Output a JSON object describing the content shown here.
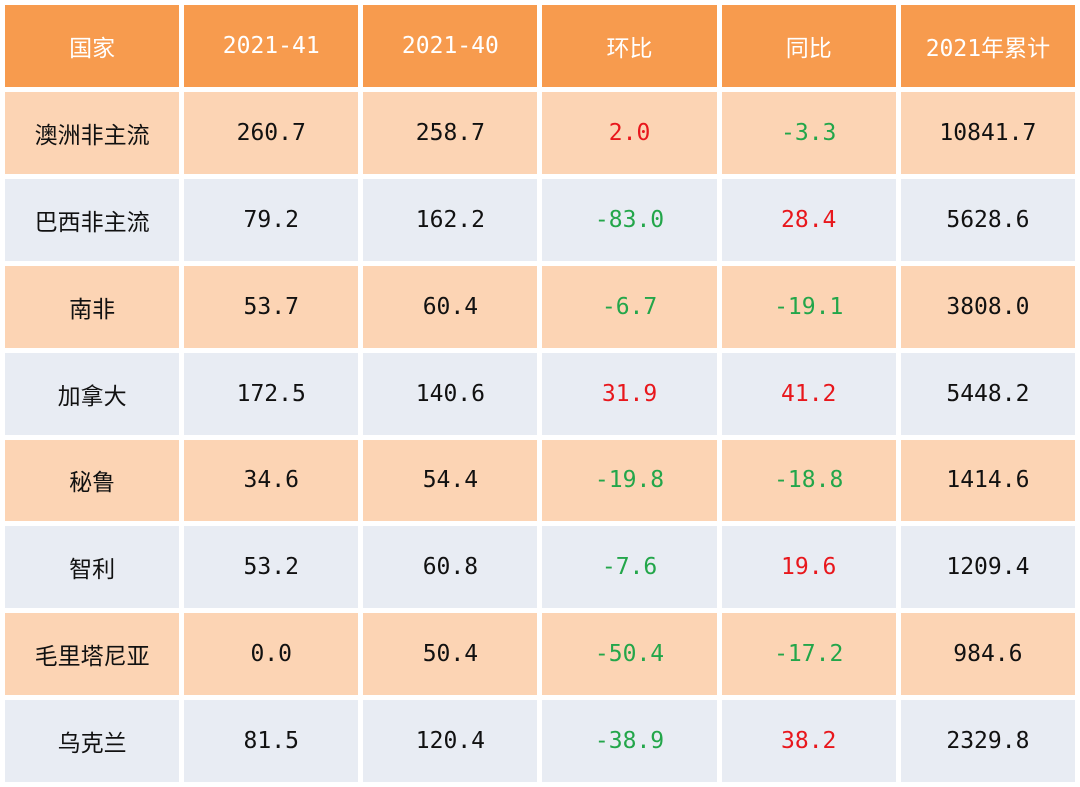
{
  "table": {
    "headers": [
      "国家",
      "2021-41",
      "2021-40",
      "环比",
      "同比",
      "2021年累计"
    ],
    "rows": [
      {
        "country": "澳洲非主流",
        "w41": "260.7",
        "w40": "258.7",
        "wow": "2.0",
        "yoy": "-3.3",
        "ytd": "10841.7",
        "wow_sign": "pos",
        "yoy_sign": "neg"
      },
      {
        "country": "巴西非主流",
        "w41": "79.2",
        "w40": "162.2",
        "wow": "-83.0",
        "yoy": "28.4",
        "ytd": "5628.6",
        "wow_sign": "neg",
        "yoy_sign": "pos"
      },
      {
        "country": "南非",
        "w41": "53.7",
        "w40": "60.4",
        "wow": "-6.7",
        "yoy": "-19.1",
        "ytd": "3808.0",
        "wow_sign": "neg",
        "yoy_sign": "neg"
      },
      {
        "country": "加拿大",
        "w41": "172.5",
        "w40": "140.6",
        "wow": "31.9",
        "yoy": "41.2",
        "ytd": "5448.2",
        "wow_sign": "pos",
        "yoy_sign": "pos"
      },
      {
        "country": "秘鲁",
        "w41": "34.6",
        "w40": "54.4",
        "wow": "-19.8",
        "yoy": "-18.8",
        "ytd": "1414.6",
        "wow_sign": "neg",
        "yoy_sign": "neg"
      },
      {
        "country": "智利",
        "w41": "53.2",
        "w40": "60.8",
        "wow": "-7.6",
        "yoy": "19.6",
        "ytd": "1209.4",
        "wow_sign": "neg",
        "yoy_sign": "pos"
      },
      {
        "country": "毛里塔尼亚",
        "w41": "0.0",
        "w40": "50.4",
        "wow": "-50.4",
        "yoy": "-17.2",
        "ytd": "984.6",
        "wow_sign": "neg",
        "yoy_sign": "neg"
      },
      {
        "country": "乌克兰",
        "w41": "81.5",
        "w40": "120.4",
        "wow": "-38.9",
        "yoy": "38.2",
        "ytd": "2329.8",
        "wow_sign": "neg",
        "yoy_sign": "pos"
      }
    ]
  },
  "colors": {
    "header_bg": "#f79b4e",
    "row_odd_bg": "#fcd4b4",
    "row_even_bg": "#e8ecf3",
    "positive": "#e8171c",
    "negative": "#23a64a"
  }
}
